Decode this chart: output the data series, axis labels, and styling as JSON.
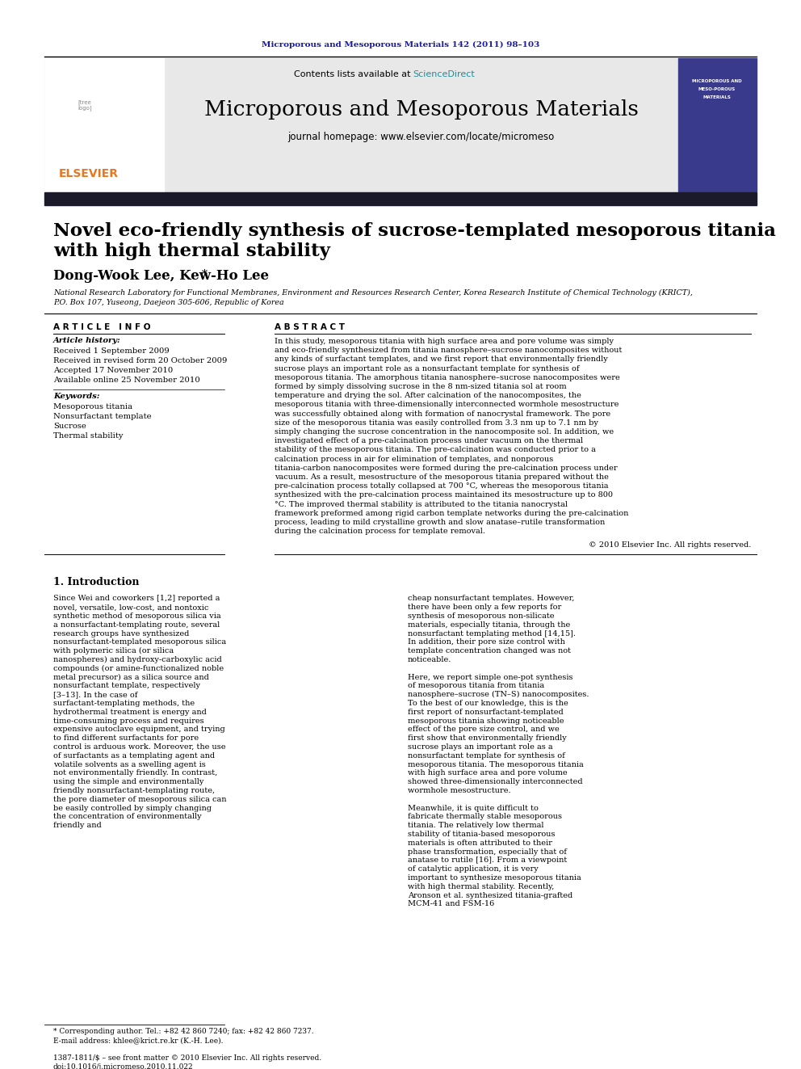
{
  "journal_ref": "Microporous and Mesoporous Materials 142 (2011) 98–103",
  "journal_ref_color": "#1a1aaa",
  "contents_text": "Contents lists available at ",
  "sciencedirect_text": "ScienceDirect",
  "sciencedirect_color": "#1a8fa0",
  "journal_title": "Microporous and Mesoporous Materials",
  "journal_homepage": "journal homepage: www.elsevier.com/locate/micromeso",
  "elsevier_color": "#e87722",
  "paper_title_line1": "Novel eco-friendly synthesis of sucrose-templated mesoporous titania",
  "paper_title_line2": "with high thermal stability",
  "authors_main": "Dong-Wook Lee, Kew-Ho Lee",
  "authors_star": " *",
  "affiliation1": "National Research Laboratory for Functional Membranes, Environment and Resources Research Center, Korea Research Institute of Chemical Technology (KRICT),",
  "affiliation2": "P.O. Box 107, Yuseong, Daejeon 305-606, Republic of Korea",
  "article_info_title": "A R T I C L E   I N F O",
  "article_history_title": "Article history:",
  "received1": "Received 1 September 2009",
  "received2": "Received in revised form 20 October 2009",
  "accepted": "Accepted 17 November 2010",
  "available": "Available online 25 November 2010",
  "keywords_title": "Keywords:",
  "keyword1": "Mesoporous titania",
  "keyword2": "Nonsurfactant template",
  "keyword3": "Sucrose",
  "keyword4": "Thermal stability",
  "abstract_title": "A B S T R A C T",
  "abstract_text": "In this study, mesoporous titania with high surface area and pore volume was simply and eco-friendly synthesized from titania nanosphere–sucrose nanocomposites without any kinds of surfactant templates, and we first report that environmentally friendly sucrose plays an important role as a nonsurfactant template for synthesis of mesoporous titania. The amorphous titania nanosphere–sucrose nanocomposites were formed by simply dissolving sucrose in the 8 nm-sized titania sol at room temperature and drying the sol. After calcination of the nanocomposites, the mesoporous titania with three-dimensionally interconnected wormhole mesostructure was successfully obtained along with formation of nanocrystal framework. The pore size of the mesoporous titania was easily controlled from 3.3 nm up to 7.1 nm by simply changing the sucrose concentration in the nanocomposite sol. In addition, we investigated effect of a pre-calcination process under vacuum on the thermal stability of the mesoporous titania. The pre-calcination was conducted prior to a calcination process in air for elimination of templates, and nonporous titania-carbon nanocomposites were formed during the pre-calcination process under vacuum. As a result, mesostructure of the mesoporous titania prepared without the pre-calcination process totally collapsed at 700 °C, whereas the mesoporous titania synthesized with the pre-calcination process maintained its mesostructure up to 800 °C. The improved thermal stability is attributed to the titania nanocrystal framework preformed among rigid carbon template networks during the pre-calcination process, leading to mild crystalline growth and slow anatase–rutile transformation during the calcination process for template removal.",
  "copyright": "© 2010 Elsevier Inc. All rights reserved.",
  "intro_title": "1. Introduction",
  "intro_col1": "Since Wei and coworkers [1,2] reported a novel, versatile, low-cost, and nontoxic synthetic method of mesoporous silica via a nonsurfactant-templating route, several research groups have synthesized nonsurfactant-templated mesoporous silica with polymeric silica (or silica nanospheres) and hydroxy-carboxylic acid compounds (or amine-functionalized noble metal precursor) as a silica source and nonsurfactant template, respectively [3–13]. In the case of surfactant-templating methods, the hydrothermal treatment is energy and time-consuming process and requires expensive autoclave equipment, and trying to find different surfactants for pore control is arduous work. Moreover, the use of surfactants as a templating agent and volatile solvents as a swelling agent is not environmentally friendly. In contrast, using the simple and environmentally friendly nonsurfactant-templating route, the pore diameter of mesoporous silica can be easily controlled by simply changing the concentration of environmentally friendly and",
  "intro_col2": "cheap nonsurfactant templates. However, there have been only a few reports for synthesis of mesoporous non-silicate materials, especially titania, through the nonsurfactant templating method [14,15]. In addition, their pore size control with template concentration changed was not noticeable.\n    Here, we report simple one-pot synthesis of mesoporous titania from titania nanosphere–sucrose (TN–S) nanocomposites. To the best of our knowledge, this is the first report of nonsurfactant-templated mesoporous titania showing noticeable effect of the pore size control, and we first show that environmentally friendly sucrose plays an important role as a nonsurfactant template for synthesis of mesoporous titania. The mesoporous titania with high surface area and pore volume showed three-dimensionally interconnected wormhole mesostructure.\n    Meanwhile, it is quite difficult to fabricate thermally stable mesoporous titania. The relatively low thermal stability of titania-based mesoporous materials is often attributed to their phase transformation, especially that of anatase to rutile [16]. From a viewpoint of catalytic application, it is very important to synthesize mesoporous titania with high thermal stability. Recently, Aronson et al. synthesized titania-grafted MCM-41 and FSM-16",
  "footnote1": "* Corresponding author. Tel.: +82 42 860 7240; fax: +82 42 860 7237.",
  "footnote2": "E-mail address: khlee@krict.re.kr (K.-H. Lee).",
  "footnote3": "1387-1811/$ – see front matter © 2010 Elsevier Inc. All rights reserved.",
  "footnote4": "doi:10.1016/j.micromeso.2010.11.022",
  "bg_color": "#ffffff",
  "header_bg": "#e8e8e8",
  "dark_bar_color": "#1a1a2a"
}
